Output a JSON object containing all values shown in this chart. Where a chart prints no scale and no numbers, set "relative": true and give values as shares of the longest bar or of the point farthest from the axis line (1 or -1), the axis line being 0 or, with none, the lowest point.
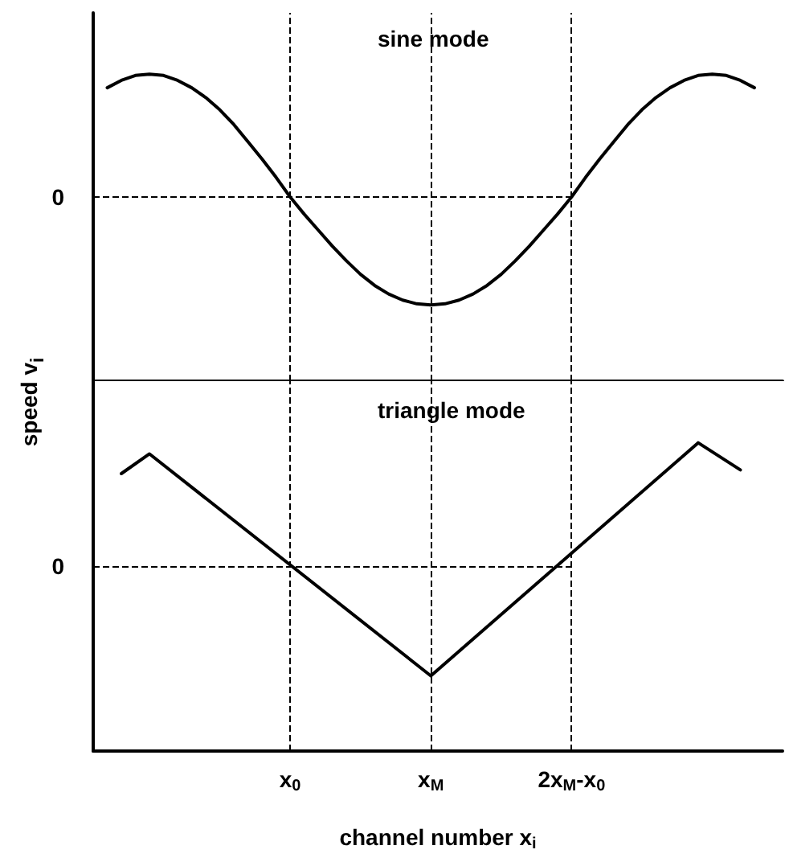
{
  "chart_data": [
    {
      "type": "line",
      "title": "sine mode",
      "relative": true,
      "tick_labels": false,
      "grid": false,
      "marker": "none",
      "line_style": "solid",
      "categories": [
        null,
        null,
        null,
        null,
        null,
        null,
        null,
        null,
        null,
        null,
        null,
        null,
        null,
        null,
        "x$_{0}$",
        null,
        null,
        null,
        null,
        null,
        null,
        null,
        null,
        null,
        "x$_{M}$",
        null,
        null,
        null,
        null,
        null,
        null,
        null,
        null,
        null,
        "2x$_{M}$-x$_{0}$",
        null,
        null,
        null,
        null,
        null,
        null,
        null,
        null,
        null,
        null,
        null,
        null,
        null,
        null,
        null
      ],
      "series": [
        {
          "color": "#000000",
          "values": [
            null,
            0.89,
            0.95,
            0.99,
            1,
            0.99,
            0.95,
            0.89,
            0.81,
            0.71,
            0.59,
            0.45,
            0.31,
            0.16,
            0,
            -0.14,
            -0.27,
            -0.4,
            -0.52,
            -0.63,
            -0.72,
            -0.79,
            -0.84,
            -0.87,
            -0.88,
            -0.87,
            -0.84,
            -0.79,
            -0.72,
            -0.63,
            -0.52,
            -0.4,
            -0.27,
            -0.14,
            0,
            0.16,
            0.31,
            0.45,
            0.59,
            0.71,
            0.81,
            0.89,
            0.95,
            0.99,
            1,
            0.99,
            0.95,
            0.89,
            null,
            null
          ]
        }
      ],
      "ref_lines": [
        {
          "axis": "y",
          "value": 0,
          "label": "0",
          "line_style": "dashed",
          "color": "#000000"
        },
        {
          "axis": "x",
          "value": "x$_{0}$",
          "line_style": "dashed",
          "color": "#000000"
        },
        {
          "axis": "x",
          "value": "x$_{M}$",
          "line_style": "dashed",
          "color": "#000000"
        },
        {
          "axis": "x",
          "value": "2x$_{M}$-x$_{0}$",
          "line_style": "dashed",
          "color": "#000000"
        }
      ]
    },
    {
      "type": "line",
      "title": "triangle mode",
      "relative": true,
      "tick_labels": "x",
      "xlabel": "channel number x$_{i}$",
      "ylabel": "speed v$_{i}$",
      "grid": false,
      "marker": "none",
      "line_style": "solid",
      "categories": [
        null,
        null,
        null,
        null,
        null,
        null,
        null,
        null,
        null,
        null,
        null,
        null,
        null,
        null,
        "x$_{0}$",
        null,
        null,
        null,
        null,
        null,
        null,
        null,
        null,
        null,
        "x$_{M}$",
        null,
        null,
        null,
        null,
        null,
        null,
        null,
        null,
        null,
        "2x$_{M}$-x$_{0}$",
        null,
        null,
        null,
        null,
        null,
        null,
        null,
        null,
        null,
        null,
        null,
        null,
        null,
        null,
        null
      ],
      "series": [
        {
          "color": "#000000",
          "values": [
            null,
            null,
            0.75,
            null,
            0.91,
            null,
            null,
            null,
            null,
            null,
            null,
            null,
            null,
            null,
            null,
            null,
            null,
            null,
            null,
            null,
            null,
            null,
            null,
            null,
            -0.89,
            null,
            null,
            null,
            null,
            null,
            null,
            null,
            null,
            null,
            null,
            null,
            null,
            null,
            null,
            null,
            null,
            null,
            null,
            1,
            null,
            null,
            0.78,
            null,
            null,
            null
          ]
        }
      ],
      "ref_lines": [
        {
          "axis": "y",
          "value": 0,
          "label": "0",
          "line_style": "dashed",
          "color": "#000000"
        },
        {
          "axis": "x",
          "value": "x$_{0}$",
          "line_style": "dashed",
          "color": "#000000"
        },
        {
          "axis": "x",
          "value": "x$_{M}$",
          "line_style": "dashed",
          "color": "#000000"
        },
        {
          "axis": "x",
          "value": "2x$_{M}$-x$_{0}$",
          "line_style": "dashed",
          "color": "#000000"
        }
      ]
    }
  ]
}
